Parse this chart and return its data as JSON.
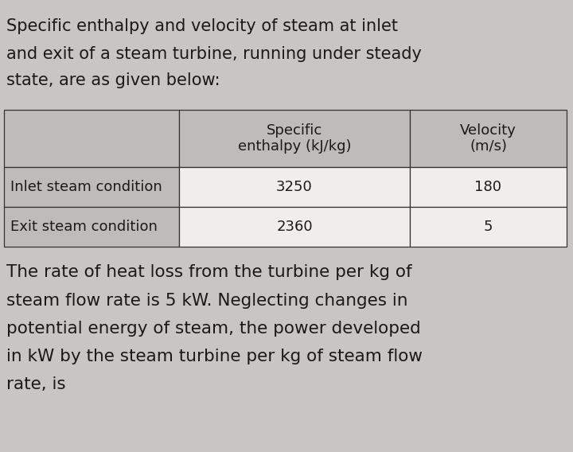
{
  "background_color": "#c8c5c2",
  "intro_text_lines": [
    "Specific enthalpy and velocity of steam at inlet",
    "and exit of a steam turbine, running under steady",
    "state, are as given below:"
  ],
  "table": {
    "col_headers": [
      "",
      "Specific\nenthalpy (kJ/kg)",
      "Velocity\n(m/s)"
    ],
    "rows": [
      [
        "Inlet steam condition",
        "3250",
        "180"
      ],
      [
        "Exit steam condition",
        "2360",
        "5"
      ]
    ],
    "header_bg": "#bebcba",
    "row_bg": "#f0eeec",
    "border_color": "#333333"
  },
  "body_text_lines": [
    "The rate of heat loss from the turbine per kg of",
    "steam flow rate is 5 kW. Neglecting changes in",
    "potential energy of steam, the power developed",
    "in kW by the steam turbine per kg of steam flow",
    "rate, is"
  ],
  "intro_font_size": 15.0,
  "body_font_size": 15.5,
  "table_font_size": 13.0,
  "text_color": "#1a1a1a",
  "font_family": "DejaVu Sans"
}
